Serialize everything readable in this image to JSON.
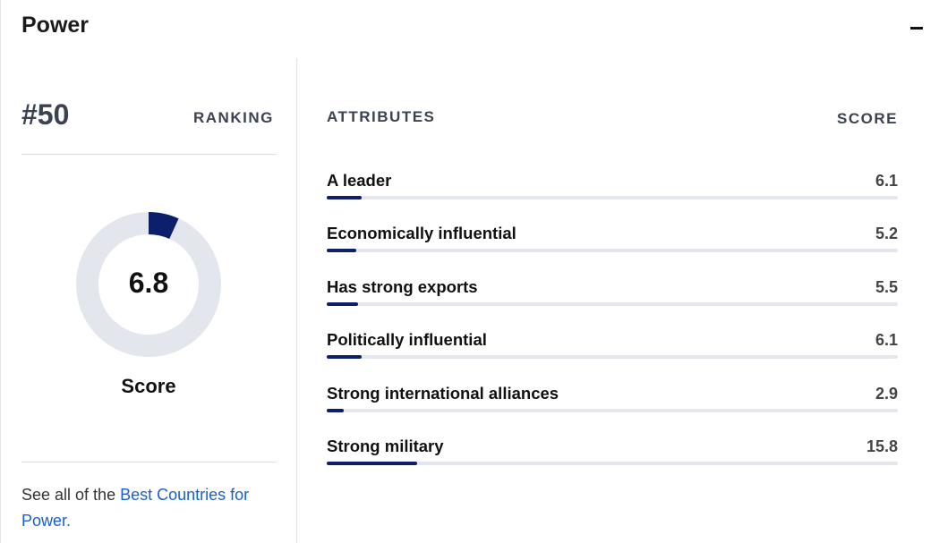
{
  "section": {
    "title": "Power",
    "collapse_symbol": "−"
  },
  "ranking": {
    "value": "#50",
    "label": "RANKING"
  },
  "score": {
    "value": 6.8,
    "display": "6.8",
    "caption": "Score",
    "max": 100
  },
  "footer": {
    "prefix": "See all of the ",
    "link": "Best Countries for Power."
  },
  "attributes": {
    "header": "ATTRIBUTES",
    "score_header": "SCORE",
    "max": 100,
    "items": [
      {
        "name": "A leader",
        "score": 6.1,
        "display": "6.1"
      },
      {
        "name": "Economically influential",
        "score": 5.2,
        "display": "5.2"
      },
      {
        "name": "Has strong exports",
        "score": 5.5,
        "display": "5.5"
      },
      {
        "name": "Politically influential",
        "score": 6.1,
        "display": "6.1"
      },
      {
        "name": "Strong international alliances",
        "score": 2.9,
        "display": "2.9"
      },
      {
        "name": "Strong military",
        "score": 15.8,
        "display": "15.8"
      }
    ]
  },
  "colors": {
    "accent": "#0d1f6a",
    "track": "#e3e6ec",
    "link": "#1a5fd1",
    "muted_text": "#3b4352"
  }
}
